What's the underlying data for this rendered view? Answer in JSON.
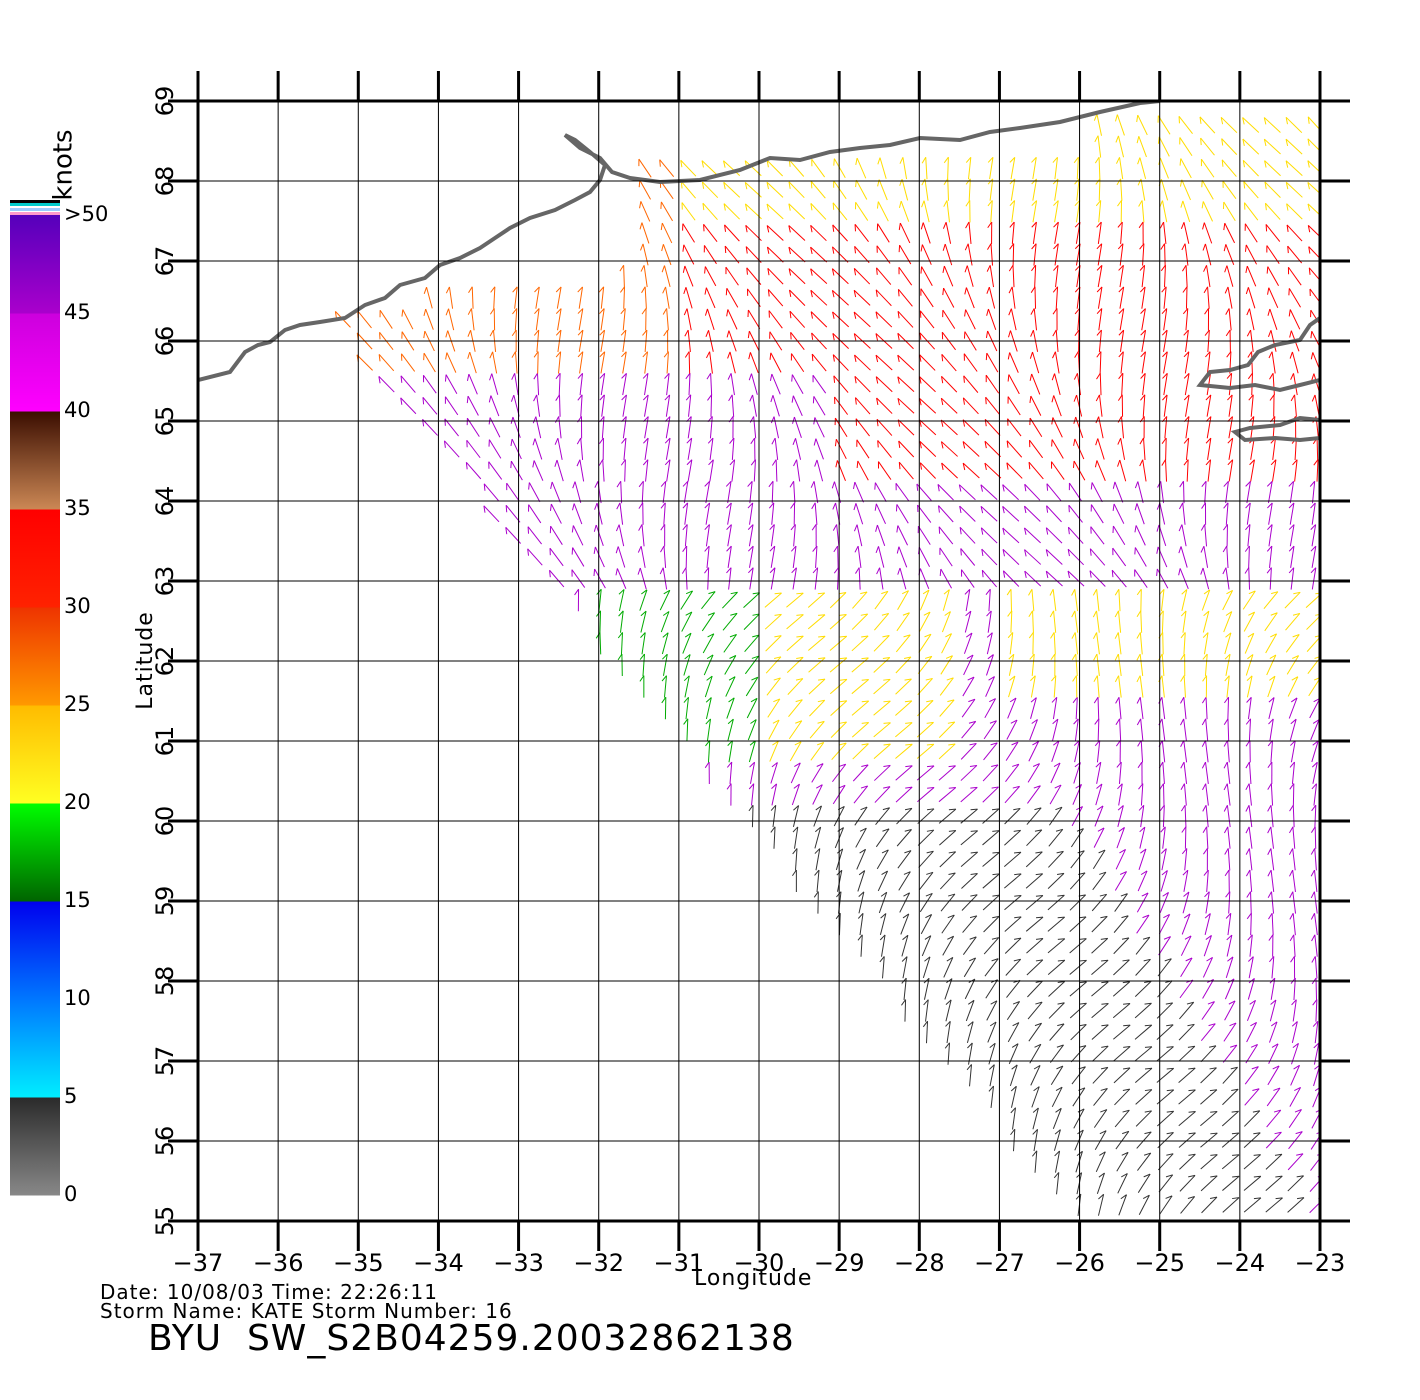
{
  "map": {
    "xlabel": "Longitude",
    "ylabel": "Latitude",
    "lon_range": [
      -37,
      -23
    ],
    "lat_range": [
      55,
      69
    ],
    "lon_ticks": [
      "-37",
      "-36",
      "-35",
      "-34",
      "-33",
      "-32",
      "-31",
      "-30",
      "-29",
      "-28",
      "-27",
      "-26",
      "-25",
      "-24",
      "-23"
    ],
    "lat_ticks": [
      "55",
      "56",
      "57",
      "58",
      "59",
      "60",
      "61",
      "62",
      "63",
      "64",
      "65",
      "66",
      "67",
      "68",
      "69"
    ]
  },
  "colorbar": {
    "unit": "knots",
    "labels": [
      ">50",
      "45",
      "40",
      "35",
      "30",
      "25",
      "20",
      "15",
      "10",
      "5",
      "0"
    ],
    "bands": [
      {
        "from": 0,
        "to": 5,
        "colors": [
          "#888888",
          "#2a2a2a"
        ]
      },
      {
        "from": 5,
        "to": 10,
        "colors": [
          "#00eeff",
          "#0077ff"
        ]
      },
      {
        "from": 10,
        "to": 15,
        "colors": [
          "#0077ff",
          "#0000ee"
        ]
      },
      {
        "from": 15,
        "to": 20,
        "colors": [
          "#006400",
          "#00ff00"
        ]
      },
      {
        "from": 20,
        "to": 25,
        "colors": [
          "#ffff22",
          "#ffbb00"
        ]
      },
      {
        "from": 25,
        "to": 30,
        "colors": [
          "#ff9900",
          "#ee3300"
        ]
      },
      {
        "from": 30,
        "to": 35,
        "colors": [
          "#ff2200",
          "#ff0000"
        ]
      },
      {
        "from": 35,
        "to": 40,
        "colors": [
          "#cc8855",
          "#3a0d00"
        ]
      },
      {
        "from": 40,
        "to": 45,
        "colors": [
          "#ff00ff",
          "#cc00dd"
        ]
      },
      {
        "from": 45,
        "to": 50,
        "colors": [
          "#aa00cc",
          "#5500bb"
        ]
      }
    ]
  },
  "colors": {
    "land": "#666666",
    "grid": "#000000",
    "wind_speed_scale": [
      "#333333",
      "#0000ff",
      "#00aa00",
      "#ffdd00",
      "#ff6600",
      "#ff0000",
      "#aa00cc"
    ]
  },
  "footer": {
    "line1": "Date: 10/08/03   Time: 22:26:11",
    "line2": "Storm  Name:  KATE   Storm  Number: 16",
    "title": "BYU  SW_S2B04259.20032862138"
  }
}
